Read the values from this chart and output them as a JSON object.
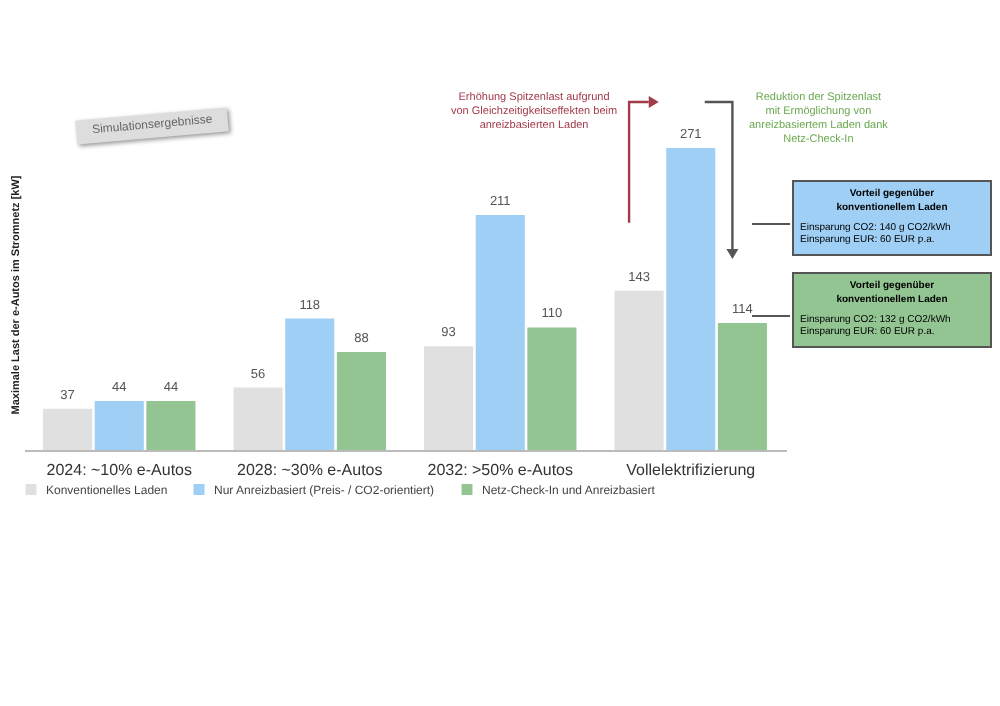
{
  "chart_data": {
    "type": "bar",
    "ylabel": "Maximale Last der e-Autos im Stromnetz [kW]",
    "categories": [
      "2024: ~10% e-Autos",
      "2028: ~30% e-Autos",
      "2032: >50% e-Autos",
      "Vollelektrifizierung"
    ],
    "series": [
      {
        "name": "Konventionelles Laden",
        "color": "#e0e0e0",
        "values": [
          37,
          56,
          93,
          143
        ]
      },
      {
        "name": "Nur Anreizbasiert (Preis- / CO2-orientiert)",
        "color": "#9fcff5",
        "values": [
          44,
          118,
          211,
          271
        ]
      },
      {
        "name": "Netz-Check-In und Anreizbasiert",
        "color": "#93c593",
        "values": [
          44,
          88,
          110,
          114
        ]
      }
    ],
    "data_labels": true,
    "legend": "bottom",
    "annotations": [
      "Simulationsergebnisse",
      "Erhöhung Spitzenlast aufgrund von Gleichzeitigkeitseffekten beim anreizbasierten Laden",
      "Reduktion der Spitzenlast mit Ermöglichung von anreizbasiertem Laden dank Netz-Check-In",
      "Vorteil gegenüber konventionellem Laden",
      "Einsparung CO2: 140 g CO2/kWh",
      "Einsparung EUR: 60 EUR p.a.",
      "Vorteil gegenüber konventionellem Laden",
      "Einsparung CO2: 132 g CO2/kWh",
      "Einsparung EUR: 60 EUR p.a."
    ]
  }
}
